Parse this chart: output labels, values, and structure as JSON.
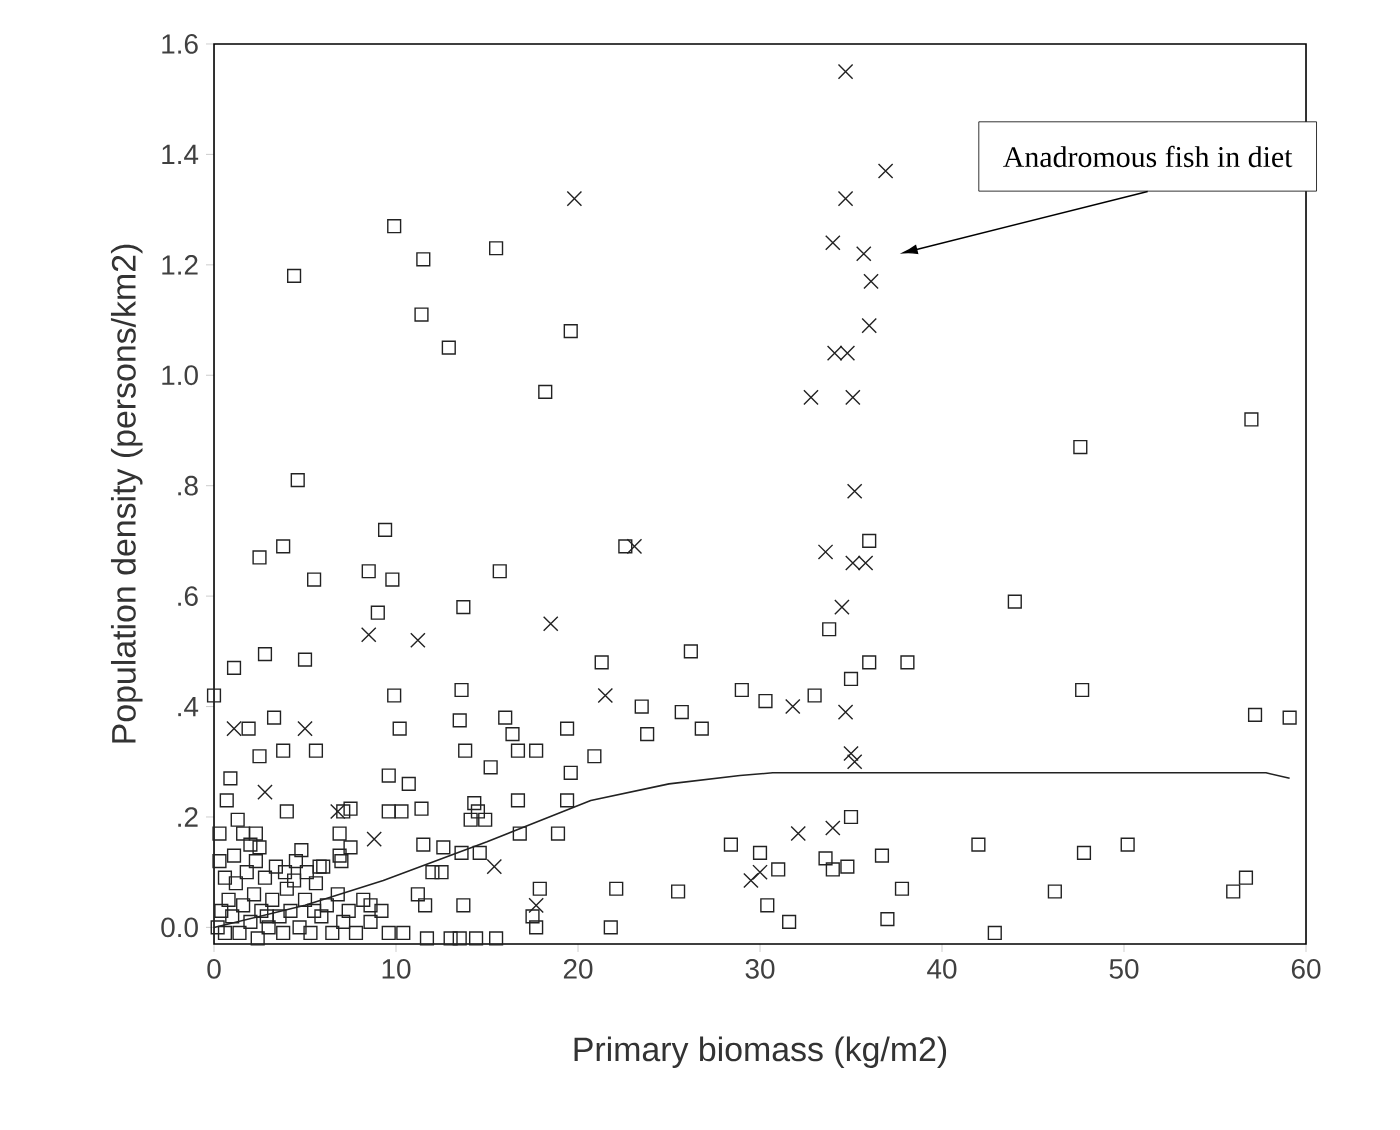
{
  "chart_data": {
    "type": "scatter",
    "xlabel": "Primary biomass (kg/m2)",
    "ylabel": "Population density (persons/km2)",
    "annotations": [
      "Anadromous fish in diet"
    ],
    "xlim": [
      0,
      60
    ],
    "ylim": [
      -0.03,
      1.6
    ],
    "xticks": [
      0,
      10,
      20,
      30,
      40,
      50,
      60
    ],
    "yticks": [
      {
        "value": 0,
        "label": "0.0"
      },
      {
        "value": 0.2,
        "label": ".2"
      },
      {
        "value": 0.4,
        "label": ".4"
      },
      {
        "value": 0.6,
        "label": ".6"
      },
      {
        "value": 0.8,
        "label": ".8"
      },
      {
        "value": 1.0,
        "label": "1.0"
      },
      {
        "value": 1.2,
        "label": "1.2"
      },
      {
        "value": 1.4,
        "label": "1.4"
      },
      {
        "value": 1.6,
        "label": "1.6"
      }
    ],
    "series": [
      {
        "marker": "square",
        "color": "#222222",
        "x": [
          4.4,
          9.9,
          11.5,
          15.5,
          11.4,
          12.9,
          19.6,
          18.2,
          4.6,
          2.5,
          3.8,
          5.5,
          9.4,
          8.5,
          9.8,
          15.7,
          22.6,
          9.0,
          13.7,
          36.0,
          47.6,
          57.0,
          44.0,
          1.1,
          2.8,
          5.0,
          0,
          9.9,
          13.6,
          10.2,
          13.5,
          3.3,
          1.9,
          2.5,
          3.8,
          5.6,
          13.8,
          16.0,
          16.4,
          16.7,
          17.7,
          19.4,
          15.2,
          9.6,
          10.7,
          19.6,
          0.9,
          0.7,
          4.0,
          7.1,
          7.5,
          9.6,
          10.3,
          11.4,
          14.3,
          14.5,
          14.1,
          14.9,
          16.7,
          19.4,
          1.3,
          0.3,
          1.6,
          2.3,
          2.0,
          2.5,
          6.9,
          7.5,
          6.9,
          11.5,
          12.6,
          16.8,
          18.9,
          13.6,
          14.6,
          12.0,
          12.5,
          4.8,
          5.8,
          5.1,
          11.2,
          11.6,
          13.7,
          17.9,
          17.5,
          17.7,
          8.6,
          10.4,
          11.7,
          13.0,
          13.5,
          14.4,
          15.5,
          33.8,
          21.3,
          26.2,
          36.0,
          38.1,
          35.0,
          23.5,
          23.8,
          25.7,
          26.8,
          29.0,
          30.3,
          33.0,
          47.7,
          57.2,
          59.1,
          20.9,
          35.0,
          28.4,
          30.0,
          31.0,
          33.6,
          34.0,
          34.8,
          36.7,
          37.8,
          42.0,
          47.8,
          50.2,
          22.1,
          25.5,
          30.4,
          31.6,
          21.8,
          37.0,
          42.9,
          46.2,
          56.0,
          56.7,
          0.2,
          0.4,
          0.6,
          0.8,
          1.0,
          1.2,
          1.4,
          1.6,
          1.8,
          2.0,
          2.2,
          2.4,
          2.6,
          2.8,
          3.0,
          3.2,
          3.4,
          3.6,
          3.8,
          4.0,
          4.2,
          4.5,
          4.7,
          5.0,
          5.3,
          5.6,
          5.9,
          6.2,
          6.5,
          6.8,
          7.1,
          7.4,
          7.8,
          8.2,
          8.6,
          9.2,
          9.6,
          0.3,
          0.6,
          1.1,
          2.3,
          3.9,
          6.0,
          7.0,
          4.4,
          5.5,
          2.9
        ],
        "values": [
          1.18,
          1.27,
          1.21,
          1.23,
          1.11,
          1.05,
          1.08,
          0.97,
          0.81,
          0.67,
          0.69,
          0.63,
          0.72,
          0.645,
          0.63,
          0.645,
          0.69,
          0.57,
          0.58,
          0.7,
          0.87,
          0.92,
          0.59,
          0.47,
          0.495,
          0.485,
          0.42,
          0.42,
          0.43,
          0.36,
          0.375,
          0.38,
          0.36,
          0.31,
          0.32,
          0.32,
          0.32,
          0.38,
          0.35,
          0.32,
          0.32,
          0.36,
          0.29,
          0.275,
          0.26,
          0.28,
          0.27,
          0.23,
          0.21,
          0.21,
          0.215,
          0.21,
          0.21,
          0.215,
          0.225,
          0.21,
          0.195,
          0.195,
          0.23,
          0.23,
          0.195,
          0.17,
          0.17,
          0.17,
          0.15,
          0.145,
          0.17,
          0.145,
          0.13,
          0.15,
          0.145,
          0.17,
          0.17,
          0.135,
          0.135,
          0.1,
          0.1,
          0.14,
          0.11,
          0.1,
          0.06,
          0.04,
          0.04,
          0.07,
          0.02,
          0.0,
          0.04,
          -0.01,
          -0.02,
          -0.02,
          -0.02,
          -0.02,
          -0.02,
          0.54,
          0.48,
          0.5,
          0.48,
          0.48,
          0.45,
          0.4,
          0.35,
          0.39,
          0.36,
          0.43,
          0.41,
          0.42,
          0.43,
          0.385,
          0.38,
          0.31,
          0.2,
          0.15,
          0.135,
          0.105,
          0.125,
          0.105,
          0.11,
          0.13,
          0.07,
          0.15,
          0.135,
          0.15,
          0.07,
          0.065,
          0.04,
          0.01,
          0.0,
          0.015,
          -0.01,
          0.065,
          0.065,
          0.09,
          0.0,
          0.03,
          -0.01,
          0.05,
          0.02,
          0.08,
          -0.01,
          0.04,
          0.1,
          0.01,
          0.06,
          -0.02,
          0.03,
          0.09,
          0.0,
          0.05,
          0.11,
          0.02,
          -0.01,
          0.07,
          0.03,
          0.12,
          0.0,
          0.05,
          -0.01,
          0.08,
          0.02,
          0.04,
          -0.01,
          0.06,
          0.01,
          0.03,
          -0.01,
          0.05,
          0.01,
          0.03,
          -0.01,
          0.12,
          0.09,
          0.13,
          0.12,
          0.1,
          0.11,
          0.12,
          0.085,
          0.03,
          0.02
        ]
      },
      {
        "marker": "cross",
        "color": "#222222",
        "x": [
          34.7,
          36.9,
          34.7,
          34.0,
          35.7,
          36.1,
          36.0,
          34.1,
          34.8,
          32.8,
          35.1,
          35.2,
          23.1,
          33.6,
          35.1,
          35.8,
          34.5,
          19.8,
          21.5,
          31.8,
          34.7,
          35.0,
          35.2,
          32.1,
          34.0,
          29.5,
          30.0,
          8.5,
          11.2,
          18.5,
          1.1,
          5.0,
          2.8,
          6.8,
          8.8,
          15.4,
          17.7
        ],
        "values": [
          1.55,
          1.37,
          1.32,
          1.24,
          1.22,
          1.17,
          1.09,
          1.04,
          1.04,
          0.96,
          0.96,
          0.79,
          0.69,
          0.68,
          0.66,
          0.66,
          0.58,
          1.32,
          0.42,
          0.4,
          0.39,
          0.315,
          0.3,
          0.17,
          0.18,
          0.085,
          0.1,
          0.53,
          0.52,
          0.55,
          0.36,
          0.36,
          0.245,
          0.21,
          0.16,
          0.11,
          0.04
        ]
      },
      {
        "type": "line",
        "marker": "none",
        "color": "#222222",
        "x": [
          0,
          5,
          9.3,
          15,
          20.7,
          25,
          28.9,
          30.7,
          57.8,
          59.1
        ],
        "values": [
          0.0,
          0.04,
          0.085,
          0.155,
          0.23,
          0.26,
          0.275,
          0.28,
          0.28,
          0.27
        ]
      }
    ]
  }
}
